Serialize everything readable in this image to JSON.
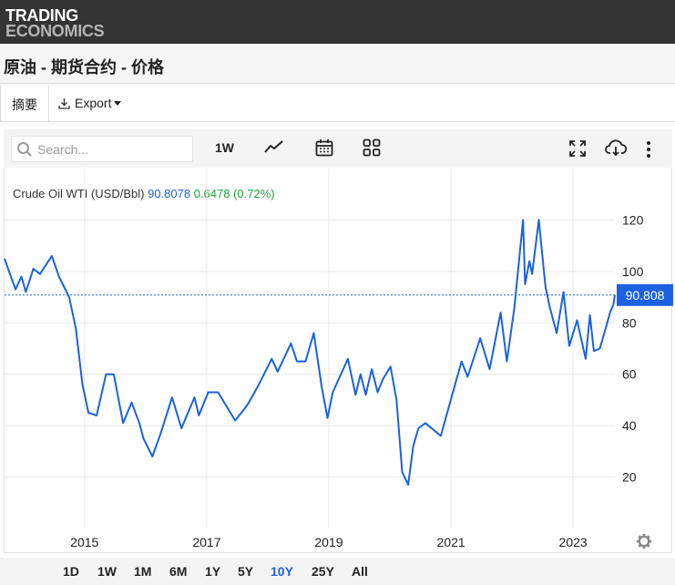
{
  "header": {
    "logo_line1": "TRADING",
    "logo_line2": "ECONOMICS"
  },
  "page": {
    "title": "原油 - 期货合约 - 价格"
  },
  "tabs": {
    "summary": "摘要",
    "export": "Export"
  },
  "toolbar": {
    "search_placeholder": "Search...",
    "interval": "1W",
    "icons": [
      "search-icon",
      "line-chart-icon",
      "calendar-icon",
      "grid-icon",
      "fullscreen-icon",
      "cloud-download-icon",
      "more-vertical-icon"
    ]
  },
  "legend": {
    "name": "Crude Oil WTI (USD/Bbl)",
    "price": "90.8078",
    "change": "0.6478 (0.72%)"
  },
  "ranges": [
    "1D",
    "1W",
    "1M",
    "6M",
    "1Y",
    "5Y",
    "10Y",
    "25Y",
    "All"
  ],
  "active_range": "10Y",
  "colors": {
    "line": "#1a62e0",
    "change": "#22a33d",
    "header_bg": "#333333"
  },
  "chart_data": {
    "type": "line",
    "series": [
      {
        "name": "Crude Oil WTI (USD/Bbl)",
        "points": [
          [
            "2013-09-10",
            105
          ],
          [
            "2013-10-01",
            101
          ],
          [
            "2013-11-15",
            93
          ],
          [
            "2013-12-20",
            98
          ],
          [
            "2014-01-15",
            92
          ],
          [
            "2014-03-01",
            101
          ],
          [
            "2014-04-10",
            99
          ],
          [
            "2014-06-20",
            106
          ],
          [
            "2014-08-01",
            98
          ],
          [
            "2014-10-01",
            90
          ],
          [
            "2014-11-10",
            78
          ],
          [
            "2014-12-20",
            56
          ],
          [
            "2015-01-25",
            45
          ],
          [
            "2015-03-15",
            44
          ],
          [
            "2015-05-10",
            60
          ],
          [
            "2015-06-25",
            60
          ],
          [
            "2015-08-20",
            41
          ],
          [
            "2015-10-10",
            49
          ],
          [
            "2015-11-25",
            41
          ],
          [
            "2015-12-20",
            35
          ],
          [
            "2016-02-11",
            28
          ],
          [
            "2016-04-01",
            37
          ],
          [
            "2016-06-08",
            51
          ],
          [
            "2016-08-03",
            39
          ],
          [
            "2016-10-20",
            51
          ],
          [
            "2016-11-15",
            44
          ],
          [
            "2017-01-10",
            53
          ],
          [
            "2017-03-10",
            53
          ],
          [
            "2017-06-20",
            42
          ],
          [
            "2017-09-01",
            48
          ],
          [
            "2017-11-01",
            55
          ],
          [
            "2018-01-25",
            66
          ],
          [
            "2018-03-01",
            61
          ],
          [
            "2018-05-20",
            72
          ],
          [
            "2018-06-25",
            65
          ],
          [
            "2018-08-15",
            65
          ],
          [
            "2018-10-03",
            76
          ],
          [
            "2018-11-20",
            55
          ],
          [
            "2018-12-24",
            43
          ],
          [
            "2019-01-25",
            53
          ],
          [
            "2019-04-25",
            66
          ],
          [
            "2019-06-10",
            52
          ],
          [
            "2019-07-10",
            60
          ],
          [
            "2019-08-10",
            52
          ],
          [
            "2019-09-15",
            62
          ],
          [
            "2019-10-20",
            53
          ],
          [
            "2019-11-20",
            58
          ],
          [
            "2020-01-05",
            63
          ],
          [
            "2020-02-10",
            50
          ],
          [
            "2020-03-15",
            22
          ],
          [
            "2020-04-20",
            17
          ],
          [
            "2020-05-20",
            32
          ],
          [
            "2020-06-20",
            39
          ],
          [
            "2020-08-01",
            41
          ],
          [
            "2020-11-01",
            36
          ],
          [
            "2021-01-08",
            52
          ],
          [
            "2021-03-05",
            65
          ],
          [
            "2021-04-10",
            59
          ],
          [
            "2021-06-25",
            74
          ],
          [
            "2021-08-20",
            62
          ],
          [
            "2021-10-25",
            84
          ],
          [
            "2021-12-01",
            65
          ],
          [
            "2022-01-15",
            86
          ],
          [
            "2022-03-08",
            120
          ],
          [
            "2022-03-20",
            95
          ],
          [
            "2022-04-15",
            104
          ],
          [
            "2022-05-01",
            99
          ],
          [
            "2022-06-10",
            120
          ],
          [
            "2022-07-20",
            94
          ],
          [
            "2022-08-15",
            86
          ],
          [
            "2022-09-25",
            76
          ],
          [
            "2022-11-05",
            92
          ],
          [
            "2022-12-09",
            71
          ],
          [
            "2023-01-25",
            81
          ],
          [
            "2023-03-17",
            66
          ],
          [
            "2023-04-12",
            83
          ],
          [
            "2023-05-05",
            69
          ],
          [
            "2023-06-10",
            70
          ],
          [
            "2023-07-20",
            79
          ],
          [
            "2023-08-10",
            84
          ],
          [
            "2023-08-30",
            87
          ],
          [
            "2023-09-08",
            90.81
          ]
        ]
      }
    ],
    "x_range": [
      "2013-09-10",
      "2023-09-08"
    ],
    "xticks": [
      "2015",
      "2017",
      "2019",
      "2021",
      "2023"
    ],
    "yticks": [
      20,
      40,
      60,
      80,
      100,
      120
    ],
    "ylim": [
      0,
      140
    ],
    "last_value": 90.808,
    "last_value_label": "90.808",
    "grid": true,
    "legend_position": "top-left"
  }
}
